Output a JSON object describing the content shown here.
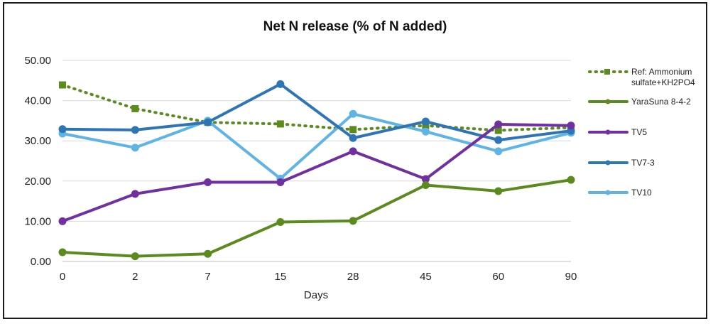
{
  "chart_data": {
    "type": "line",
    "title": "Net N release (% of N added)",
    "xlabel": "Days",
    "ylabel": "",
    "categories": [
      "0",
      "2",
      "7",
      "15",
      "28",
      "45",
      "60",
      "90"
    ],
    "ylim": [
      0,
      50
    ],
    "yticks": [
      "0.00",
      "10.00",
      "20.00",
      "30.00",
      "40.00",
      "50.00"
    ],
    "grid": true,
    "legend_position": "right",
    "series": [
      {
        "name": "Ref: Ammonium sulfate+KH2PO4",
        "legend_lines": [
          "Ref: Ammonium",
          "sulfate+KH2PO4"
        ],
        "color": "#5b8a1e",
        "dashed": true,
        "marker": "square",
        "values": [
          43.9,
          38.0,
          34.6,
          34.2,
          32.8,
          33.8,
          32.6,
          33.3
        ]
      },
      {
        "name": "YaraSuna 8-4-2",
        "legend_lines": [
          "YaraSuna 8-4-2"
        ],
        "color": "#5b8a1e",
        "dashed": false,
        "marker": "circle",
        "values": [
          2.3,
          1.3,
          1.9,
          9.8,
          10.1,
          19.0,
          17.5,
          20.3
        ]
      },
      {
        "name": "TV5",
        "legend_lines": [
          "TV5"
        ],
        "color": "#7030a0",
        "dashed": false,
        "marker": "circle",
        "values": [
          10.0,
          16.8,
          19.7,
          19.7,
          27.4,
          20.5,
          34.1,
          33.8
        ]
      },
      {
        "name": "TV7-3",
        "legend_lines": [
          "TV7-3"
        ],
        "color": "#2e75b6",
        "dashed": false,
        "marker": "circle",
        "values": [
          32.9,
          32.7,
          34.6,
          44.1,
          30.7,
          34.8,
          30.2,
          32.5
        ]
      },
      {
        "name": "TV10",
        "legend_lines": [
          "TV10"
        ],
        "color": "#5db4e5",
        "dashed": false,
        "marker": "circle",
        "values": [
          31.8,
          28.3,
          35.0,
          20.6,
          36.7,
          32.3,
          27.4,
          32.0
        ]
      }
    ]
  }
}
